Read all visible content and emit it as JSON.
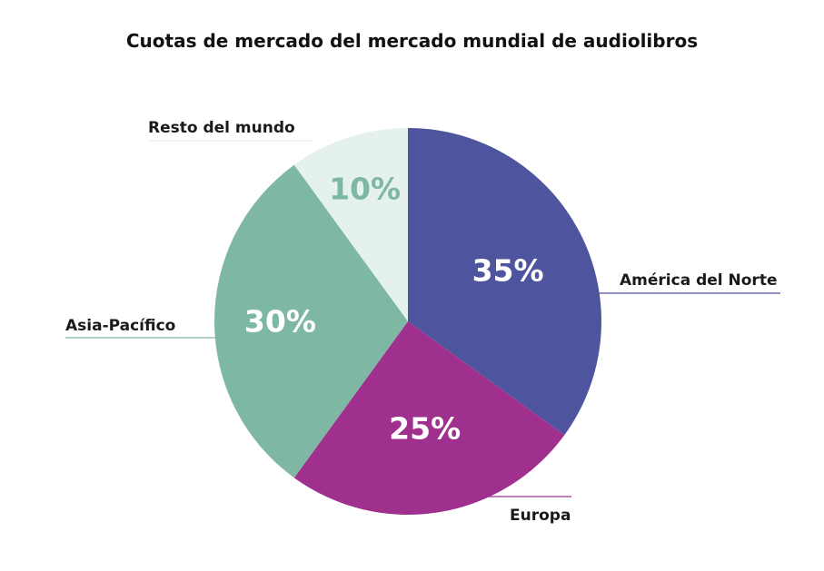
{
  "chart_data": {
    "type": "pie",
    "title": "Cuotas de mercado del mercado mundial de audiolibros",
    "categories": [
      "América del Norte",
      "Europa",
      "Asia-Pacífico",
      "Resto del mundo"
    ],
    "values": [
      35,
      25,
      30,
      10
    ],
    "value_labels": [
      "35%",
      "25%",
      "30%",
      "10%"
    ],
    "colors": [
      "#4F549E",
      "#A0308E",
      "#7EB8A4",
      "#E4F1EC"
    ],
    "value_label_colors": [
      "#FFFFFF",
      "#FFFFFF",
      "#FFFFFF",
      "#7EB8A4"
    ],
    "start_angle_deg": 0,
    "direction": "clockwise",
    "legend": "none"
  }
}
